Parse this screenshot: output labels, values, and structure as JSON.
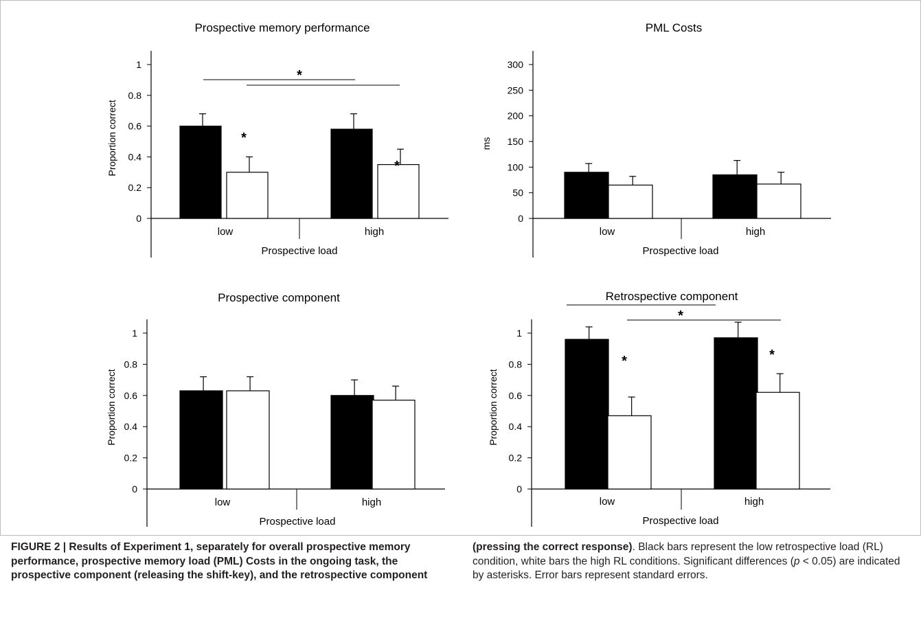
{
  "charts": [
    {
      "title": "Prospective memory performance",
      "xlabel": "Prospective load",
      "ylabel": "Proportion correct",
      "ylim": [
        0,
        1
      ],
      "yticks": [
        "0",
        "0.2",
        "0.4",
        "0.6",
        "0.8",
        "1"
      ],
      "ytick_values": [
        0,
        0.2,
        0.4,
        0.6,
        0.8,
        1
      ],
      "categories": [
        "low",
        "high"
      ],
      "values": {
        "black": [
          0.6,
          0.58
        ],
        "white": [
          0.3,
          0.35
        ]
      },
      "errors": {
        "black": [
          0.08,
          0.1
        ],
        "white": [
          0.1,
          0.1
        ]
      },
      "star_symbol": "*"
    },
    {
      "title": "PML Costs",
      "xlabel": "Prospective load",
      "ylabel": "ms",
      "ylim": [
        0,
        300
      ],
      "yticks": [
        "0",
        "50",
        "100",
        "150",
        "200",
        "250",
        "300"
      ],
      "ytick_values": [
        0,
        50,
        100,
        150,
        200,
        250,
        300
      ],
      "categories": [
        "low",
        "high"
      ],
      "values": {
        "black": [
          90,
          85
        ],
        "white": [
          65,
          67
        ]
      },
      "errors": {
        "black": [
          17,
          28
        ],
        "white": [
          17,
          23
        ]
      }
    },
    {
      "title": "Prospective component",
      "xlabel": "Prospective load",
      "ylabel": "Proportion correct",
      "ylim": [
        0,
        1
      ],
      "yticks": [
        "0",
        "0.2",
        "0.4",
        "0.6",
        "0.8",
        "1"
      ],
      "ytick_values": [
        0,
        0.2,
        0.4,
        0.6,
        0.8,
        1
      ],
      "categories": [
        "low",
        "high"
      ],
      "values": {
        "black": [
          0.63,
          0.6
        ],
        "white": [
          0.63,
          0.57
        ]
      },
      "errors": {
        "black": [
          0.09,
          0.1
        ],
        "white": [
          0.09,
          0.09
        ]
      }
    },
    {
      "title": "Retrospective component",
      "xlabel": "Prospective load",
      "ylabel": "Proportion correct",
      "ylim": [
        0,
        1
      ],
      "yticks": [
        "0",
        "0.2",
        "0.4",
        "0.6",
        "0.8",
        "1"
      ],
      "ytick_values": [
        0,
        0.2,
        0.4,
        0.6,
        0.8,
        1
      ],
      "categories": [
        "low",
        "high"
      ],
      "values": {
        "black": [
          0.96,
          0.97
        ],
        "white": [
          0.47,
          0.62
        ]
      },
      "errors": {
        "black": [
          0.08,
          0.1
        ],
        "white": [
          0.12,
          0.12
        ]
      },
      "star_symbol": "*"
    }
  ],
  "caption": {
    "left_bold": "FIGURE 2 | Results of Experiment 1, separately for overall prospective memory performance, prospective memory load (PML) Costs in the ongoing task, the prospective component (releasing the shift-key), and the retrospective component",
    "right_bold": "(pressing the correct response)",
    "right_a": ". Black bars represent the low retrospective load (RL) condition, white bars the high RL conditions. Significant differences (",
    "right_p": "p",
    "right_b": " < 0.05) are indicated by asterisks. Error bars represent standard errors."
  }
}
